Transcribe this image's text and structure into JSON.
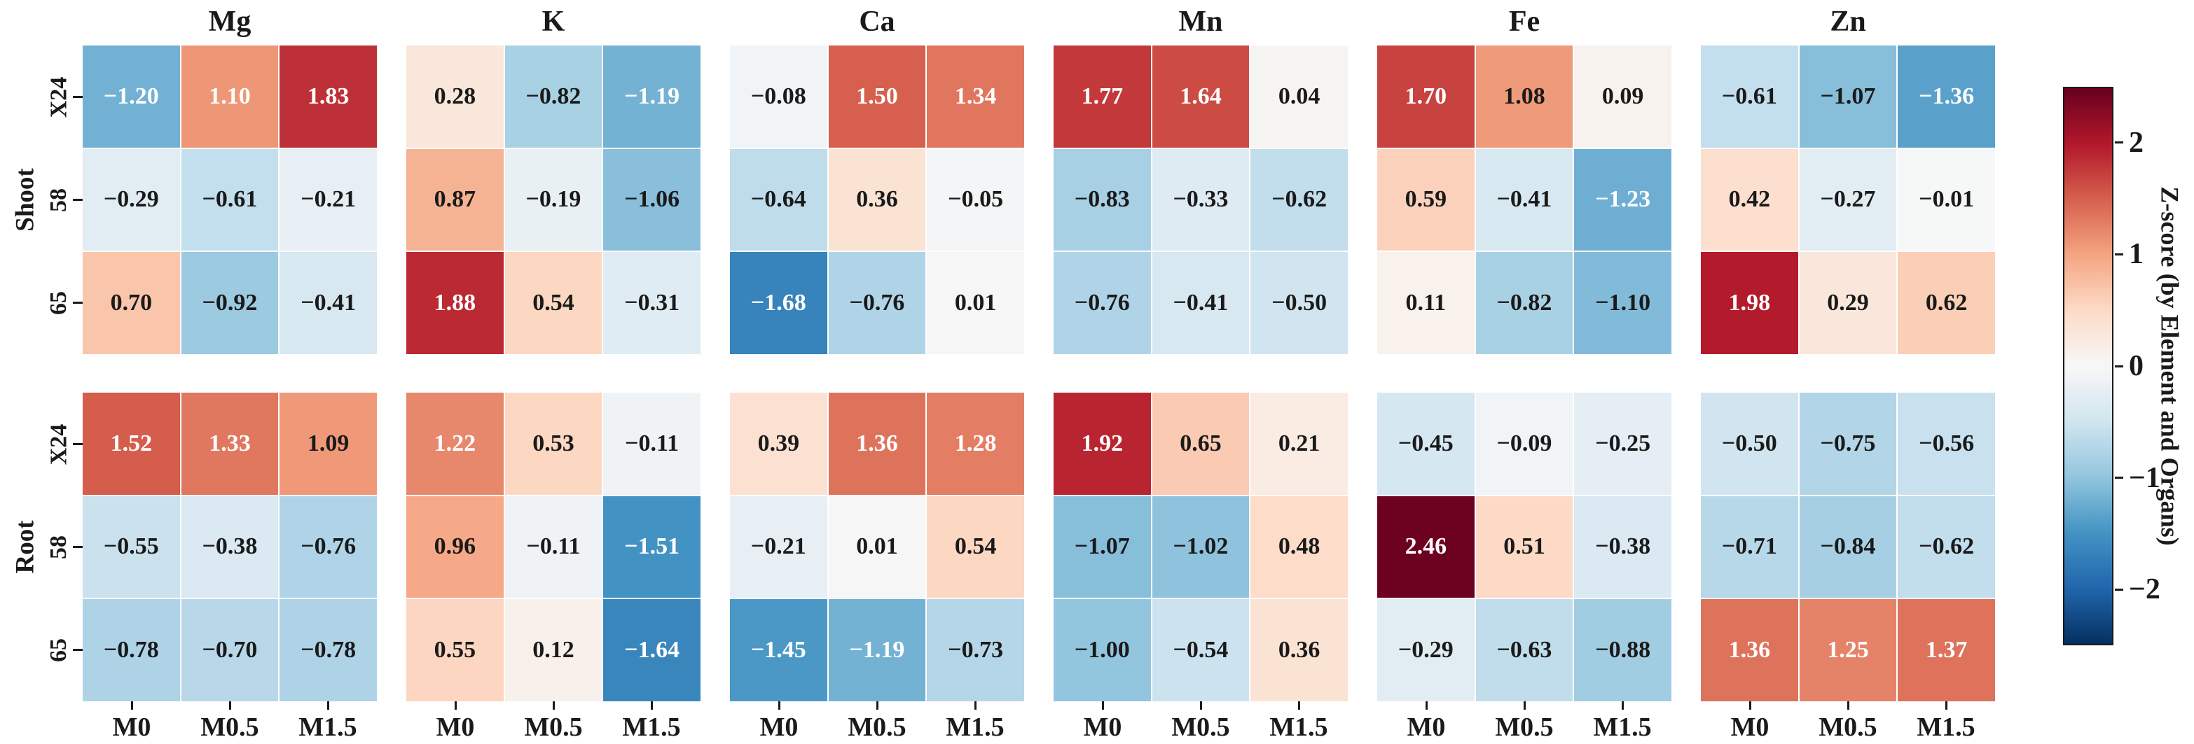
{
  "figure": {
    "background": "#ffffff"
  },
  "axes": {
    "organ_labels": [
      "Shoot",
      "Root"
    ],
    "row_labels": [
      "X24",
      "58",
      "65"
    ],
    "col_labels": [
      "M0",
      "M0.5",
      "M1.5"
    ],
    "element_titles": [
      "Mg",
      "K",
      "Ca",
      "Mn",
      "Fe",
      "Zn"
    ]
  },
  "colorbar": {
    "label": "Z-score (by Element and Organs)",
    "tick_labels": [
      "2",
      "1",
      "0",
      "−1",
      "−2"
    ],
    "tick_values": [
      2,
      1,
      0,
      -1,
      -2
    ],
    "vmin": -2.5,
    "vmax": 2.5,
    "gradient_top_to_bottom": [
      "#67001f",
      "#b2182b",
      "#d6604d",
      "#f4a582",
      "#fddbc7",
      "#f7f7f7",
      "#d1e5f0",
      "#92c5de",
      "#4393c3",
      "#2166ac",
      "#053061"
    ]
  },
  "style_colors": {
    "annotation_dark": "#1a1a1a",
    "annotation_light": "#ffffff",
    "cell_gridline": "#ffffff"
  },
  "chart_data": {
    "type": "heatmap",
    "title": "",
    "colormap": "RdBu_r",
    "value_range": [
      -2.5,
      2.5
    ],
    "legend_position": "right-colorbar",
    "grid": "white cell separators",
    "organs": [
      "Shoot",
      "Root"
    ],
    "elements": [
      "Mg",
      "K",
      "Ca",
      "Mn",
      "Fe",
      "Zn"
    ],
    "rows": [
      "X24",
      "58",
      "65"
    ],
    "columns": [
      "M0",
      "M0.5",
      "M1.5"
    ],
    "values": {
      "Shoot": {
        "Mg": [
          [
            -1.2,
            1.1,
            1.83
          ],
          [
            -0.29,
            -0.61,
            -0.21
          ],
          [
            0.7,
            -0.92,
            -0.41
          ]
        ],
        "K": [
          [
            0.28,
            -0.82,
            -1.19
          ],
          [
            0.87,
            -0.19,
            -1.06
          ],
          [
            1.88,
            0.54,
            -0.31
          ]
        ],
        "Ca": [
          [
            -0.08,
            1.5,
            1.34
          ],
          [
            -0.64,
            0.36,
            -0.05
          ],
          [
            -1.68,
            -0.76,
            0.01
          ]
        ],
        "Mn": [
          [
            1.77,
            1.64,
            0.04
          ],
          [
            -0.83,
            -0.33,
            -0.62
          ],
          [
            -0.76,
            -0.41,
            -0.5
          ]
        ],
        "Fe": [
          [
            1.7,
            1.08,
            0.09
          ],
          [
            0.59,
            -0.41,
            -1.23
          ],
          [
            0.11,
            -0.82,
            -1.1
          ]
        ],
        "Zn": [
          [
            -0.61,
            -1.07,
            -1.36
          ],
          [
            0.42,
            -0.27,
            -0.01
          ],
          [
            1.98,
            0.29,
            0.62
          ]
        ]
      },
      "Root": {
        "Mg": [
          [
            1.52,
            1.33,
            1.09
          ],
          [
            -0.55,
            -0.38,
            -0.76
          ],
          [
            -0.78,
            -0.7,
            -0.78
          ]
        ],
        "K": [
          [
            1.22,
            0.53,
            -0.11
          ],
          [
            0.96,
            -0.11,
            -1.51
          ],
          [
            0.55,
            0.12,
            -1.64
          ]
        ],
        "Ca": [
          [
            0.39,
            1.36,
            1.28
          ],
          [
            -0.21,
            0.01,
            0.54
          ],
          [
            -1.45,
            -1.19,
            -0.73
          ]
        ],
        "Mn": [
          [
            1.92,
            0.65,
            0.21
          ],
          [
            -1.07,
            -1.02,
            0.48
          ],
          [
            -1.0,
            -0.54,
            0.36
          ]
        ],
        "Fe": [
          [
            -0.45,
            -0.09,
            -0.25
          ],
          [
            2.46,
            0.51,
            -0.38
          ],
          [
            -0.29,
            -0.63,
            -0.88
          ]
        ],
        "Zn": [
          [
            -0.5,
            -0.75,
            -0.56
          ],
          [
            -0.71,
            -0.84,
            -0.62
          ],
          [
            1.36,
            1.25,
            1.37
          ]
        ]
      }
    }
  }
}
